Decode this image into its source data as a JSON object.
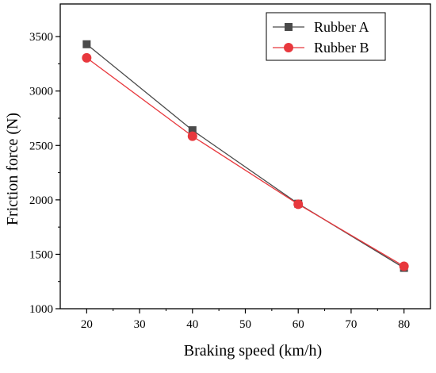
{
  "chart_data": {
    "type": "line",
    "title": "",
    "xlabel": "Braking speed (km/h)",
    "ylabel": "Friction force (N)",
    "x": [
      20,
      40,
      60,
      80
    ],
    "xlim": [
      15,
      85
    ],
    "ylim": [
      1000,
      3800
    ],
    "xticks": [
      20,
      30,
      40,
      50,
      60,
      70,
      80
    ],
    "yticks": [
      1000,
      1500,
      2000,
      2500,
      3000,
      3500
    ],
    "grid": false,
    "legend_position": "top-right",
    "series": [
      {
        "name": "Rubber A",
        "values": [
          3430,
          2640,
          1965,
          1375
        ],
        "color": "#4a4a4a",
        "marker": "square"
      },
      {
        "name": "Rubber B",
        "values": [
          3305,
          2585,
          1960,
          1390
        ],
        "color": "#e8383d",
        "marker": "circle"
      }
    ]
  }
}
